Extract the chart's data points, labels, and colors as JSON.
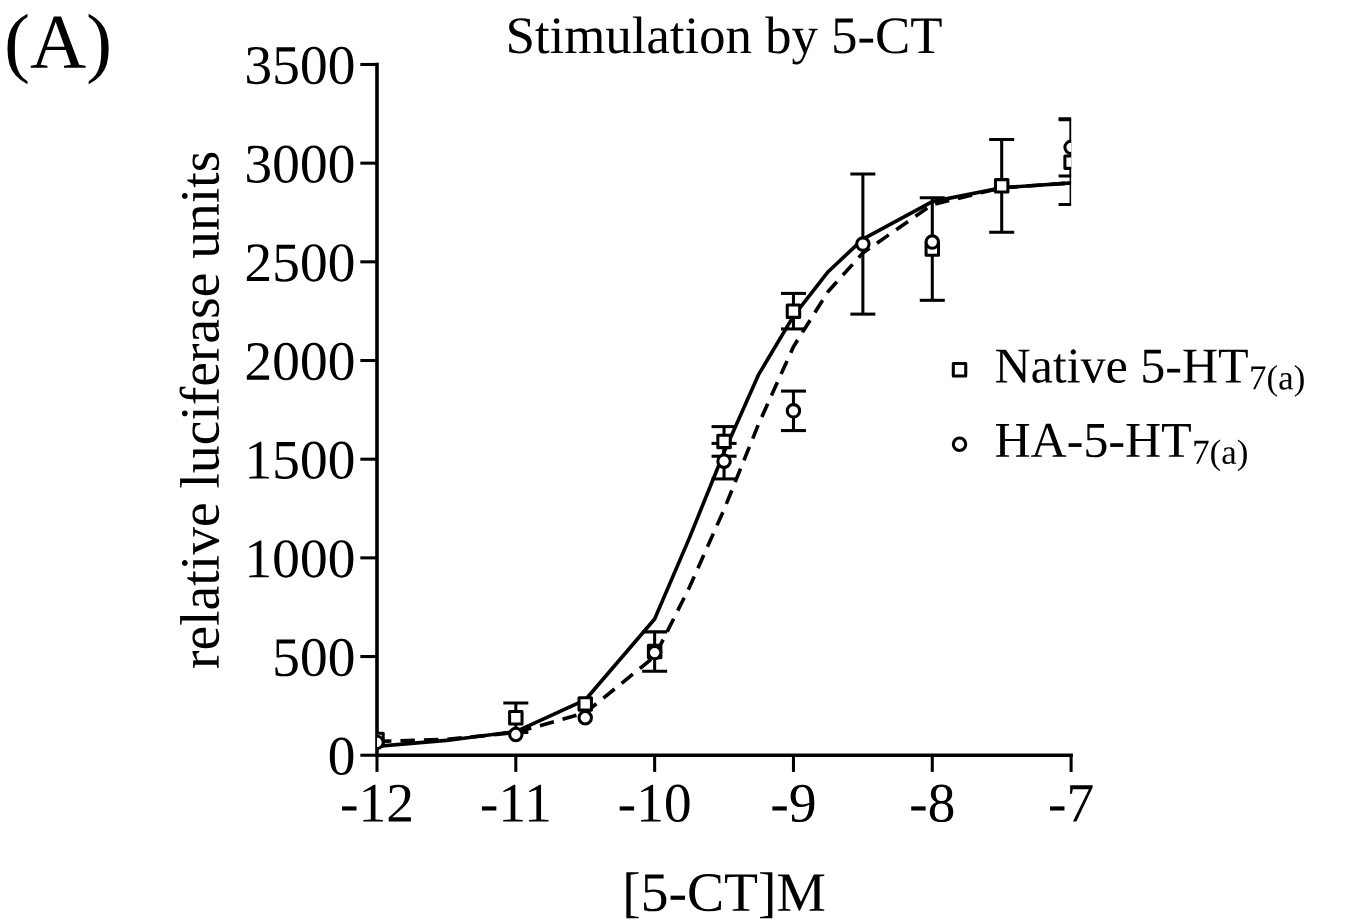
{
  "chart_data": {
    "type": "scatter",
    "title": "Stimulation by 5-CT",
    "xlabel": "[5-CT]M",
    "ylabel": "relative luciferase units",
    "annotations": [
      "(A)"
    ],
    "xlim": [
      -12,
      -7
    ],
    "xticks": [
      {
        "value": -12,
        "label": "-12"
      },
      {
        "value": -11,
        "label": "-11"
      },
      {
        "value": -10,
        "label": "-10"
      },
      {
        "value": -9,
        "label": "-9"
      },
      {
        "value": -8,
        "label": "-8"
      },
      {
        "value": -7,
        "label": "-7"
      }
    ],
    "ylim": [
      0,
      3500
    ],
    "yticks": [
      0,
      500,
      1000,
      1500,
      2000,
      2500,
      3000,
      3500
    ],
    "grid": false,
    "legend": "right",
    "series": [
      {
        "type": "line",
        "color": "#000000",
        "line_style": "solid",
        "marker": "none",
        "x": [
          -12,
          -11.5,
          -11,
          -10.5,
          -10,
          -9.75,
          -9.5,
          -9.25,
          -9,
          -8.75,
          -8.5,
          -8,
          -7.5,
          -7
        ],
        "values": [
          45,
          75,
          120,
          280,
          690,
          1100,
          1535,
          1930,
          2225,
          2450,
          2615,
          2805,
          2875,
          2900
        ]
      },
      {
        "type": "line",
        "color": "#000000",
        "line_style": "dashed",
        "marker": "none",
        "x": [
          -12,
          -11.5,
          -11,
          -10.5,
          -10,
          -9.75,
          -9.5,
          -9.25,
          -9,
          -8.75,
          -8.5,
          -8,
          -7.5,
          -7
        ],
        "values": [
          70,
          80,
          115,
          215,
          500,
          850,
          1245,
          1680,
          2070,
          2350,
          2545,
          2790,
          2875,
          2900
        ]
      },
      {
        "name": "Native 5-HT$_{7(a)}$",
        "color": "#000000",
        "marker": "square",
        "x": [
          -12,
          -11,
          -10.5,
          -10,
          -9.5,
          -9,
          -8,
          -7.5,
          -7
        ],
        "values": [
          80,
          190,
          260,
          525,
          1590,
          2250,
          2565,
          2885,
          3005
        ],
        "errors": [
          null,
          75,
          null,
          100,
          75,
          90,
          260,
          235,
          215
        ]
      },
      {
        "name": "HA-5-HT$_{7(a)}$",
        "color": "#000000",
        "marker": "circle",
        "x": [
          -12,
          -11,
          -10.5,
          -10,
          -9.5,
          -9,
          -8.5,
          -8,
          -7
        ],
        "values": [
          65,
          105,
          190,
          520,
          1490,
          1745,
          2590,
          2600,
          3080
        ],
        "errors": [
          null,
          null,
          null,
          null,
          90,
          100,
          355,
          null,
          145
        ]
      }
    ]
  }
}
